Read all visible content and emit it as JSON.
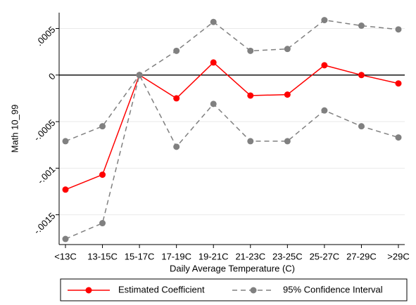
{
  "chart_data": {
    "type": "line",
    "y_label": "Math 10_99",
    "x_label": "Daily Average Temperature (C)",
    "categories": [
      "<13C",
      "13-15C",
      "15-17C",
      "17-19C",
      "19-21C",
      "21-23C",
      "23-25C",
      "25-27C",
      "27-29C",
      ">29C"
    ],
    "series": [
      {
        "name": "Estimated Coefficient",
        "color": "#ff0000",
        "dashed": false,
        "values": [
          -0.00123,
          -0.00107,
          0,
          -0.00025,
          0.000135,
          -0.00022,
          -0.00021,
          0.000105,
          0,
          -9e-05
        ]
      },
      {
        "name": "95% Confidence Interval",
        "color": "#808080",
        "dashed": true,
        "upper": [
          -0.00071,
          -0.00055,
          0,
          0.00026,
          0.00057,
          0.00026,
          0.00028,
          0.00059,
          0.00053,
          0.00049
        ],
        "lower": [
          -0.00176,
          -0.00159,
          0,
          -0.00077,
          -0.00031,
          -0.00071,
          -0.00071,
          -0.00038,
          -0.00055,
          -0.00067
        ]
      }
    ],
    "ylim": [
      -0.00182,
      0.00067
    ],
    "yticks": [
      {
        "value": -0.0015,
        "label": "-.0015"
      },
      {
        "value": -0.001,
        "label": "-.001"
      },
      {
        "value": -0.0005,
        "label": "-.0005"
      },
      0,
      {
        "value": 0.0005,
        "label": ".0005"
      }
    ],
    "hline": 0,
    "grid": true
  }
}
